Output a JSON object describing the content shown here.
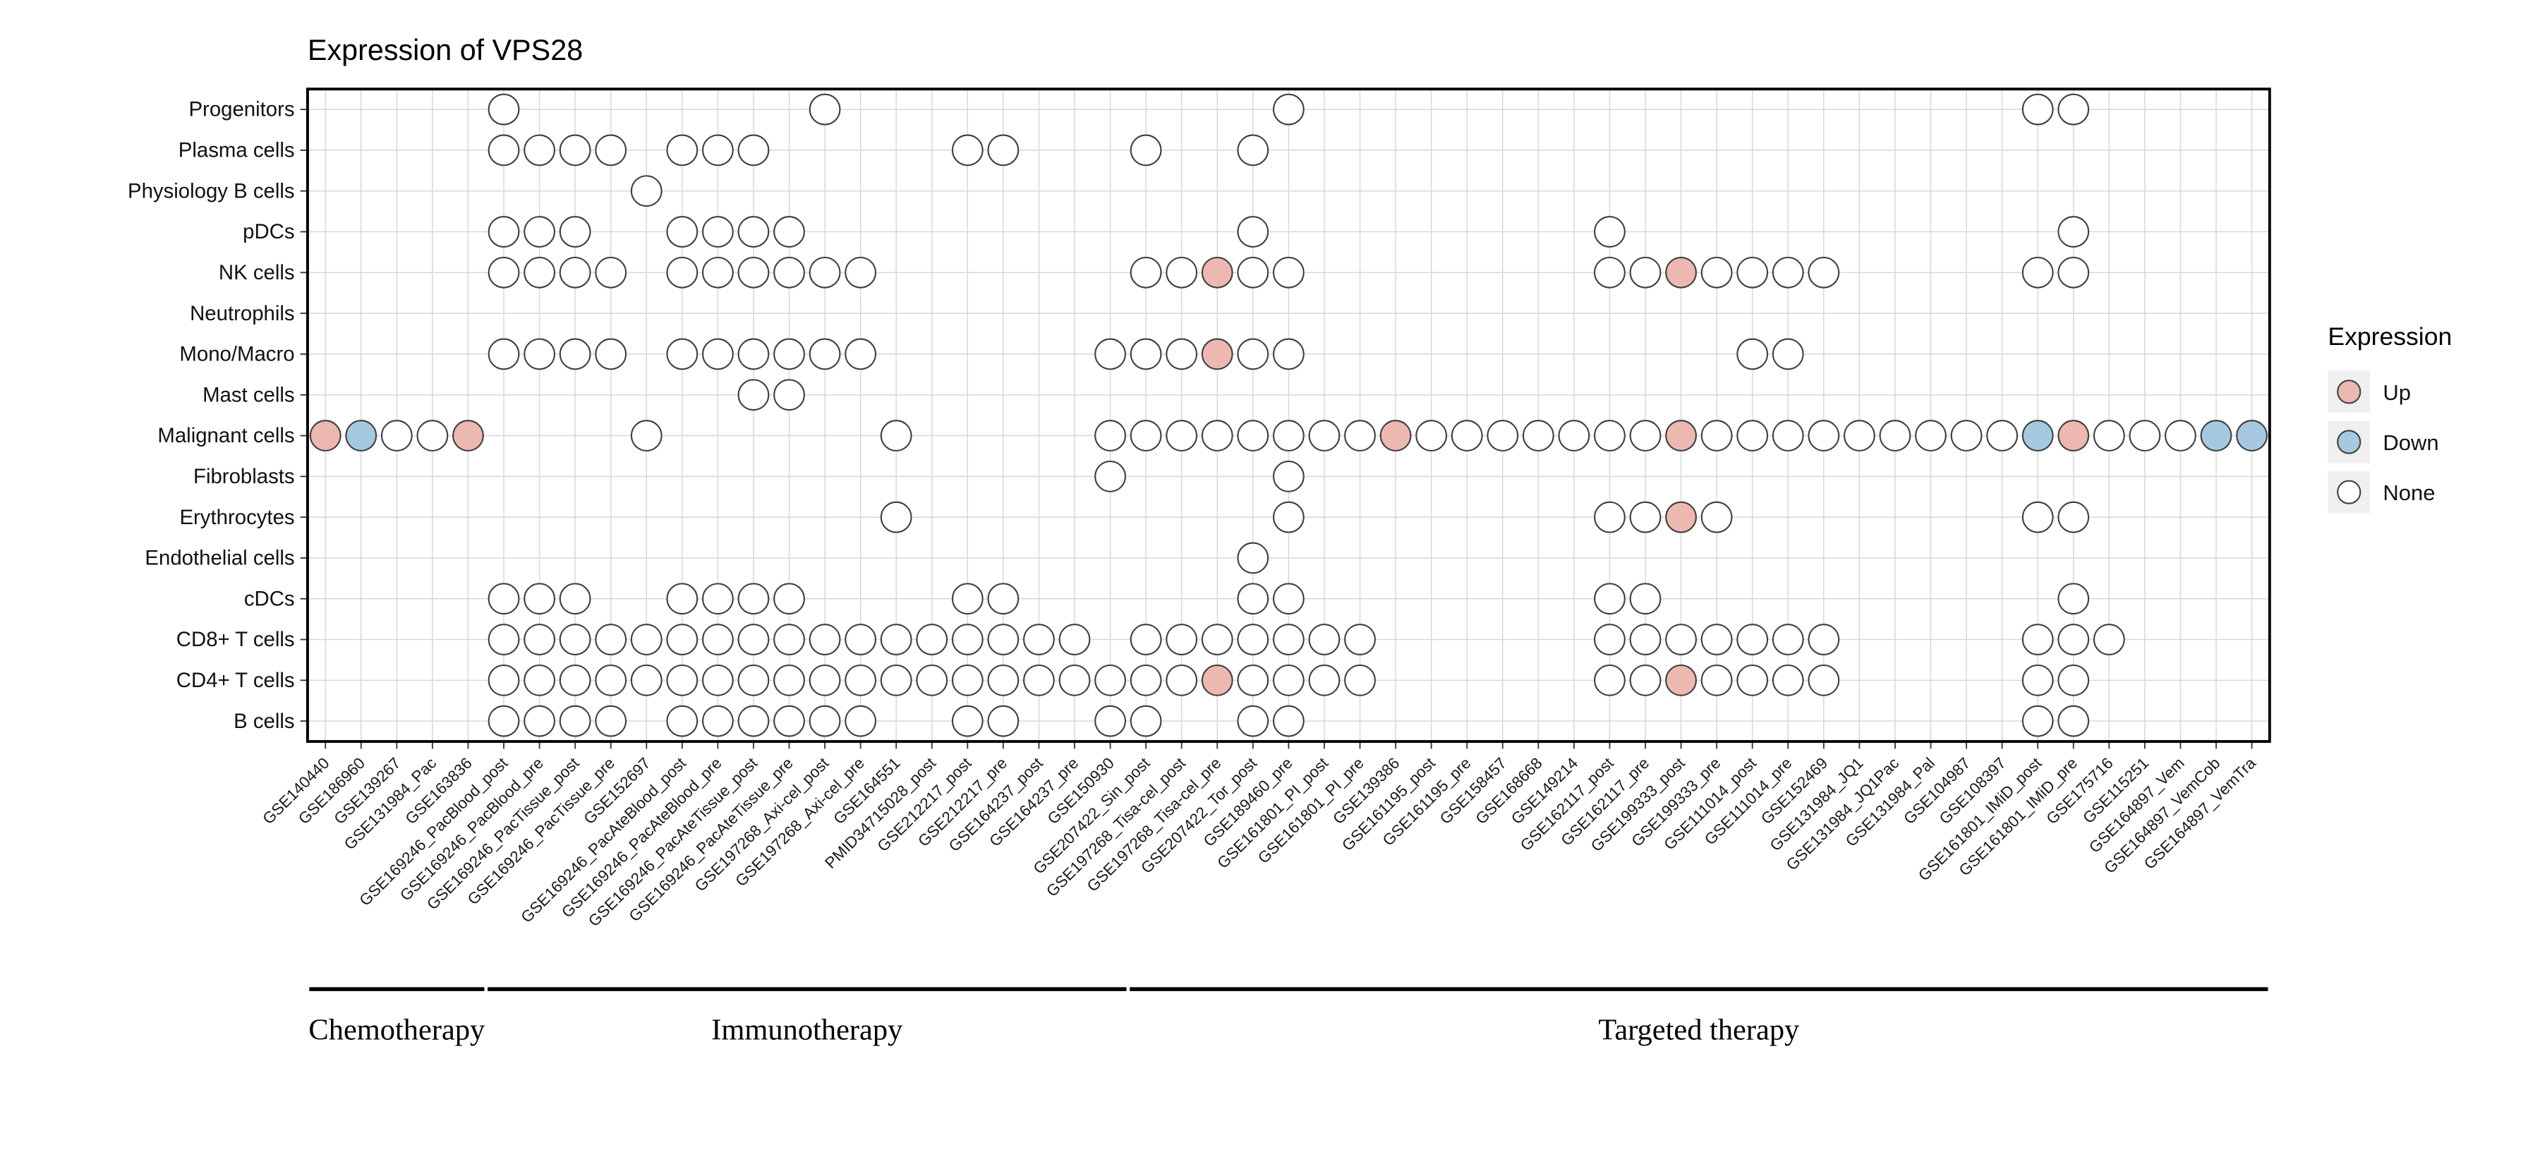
{
  "title": "Expression of VPS28",
  "legend": {
    "title": "Expression",
    "items": [
      {
        "label": "Up",
        "color": "#EDB8B0"
      },
      {
        "label": "Down",
        "color": "#A6C9E0"
      },
      {
        "label": "None",
        "color": "#FFFFFF"
      }
    ]
  },
  "chart_data": {
    "type": "heatmap",
    "title": "Expression of VPS28",
    "x_categories": [
      "GSE140440",
      "GSE186960",
      "GSE139267",
      "GSE131984_Pac",
      "GSE163836",
      "GSE169246_PacBlood_post",
      "GSE169246_PacBlood_pre",
      "GSE169246_PacTissue_post",
      "GSE169246_PacTissue_pre",
      "GSE152697",
      "GSE169246_PacAteBlood_post",
      "GSE169246_PacAteBlood_pre",
      "GSE169246_PacAteTissue_post",
      "GSE169246_PacAteTissue_pre",
      "GSE197268_Axi-cel_post",
      "GSE197268_Axi-cel_pre",
      "GSE164551",
      "PMID34715028_post",
      "GSE212217_post",
      "GSE212217_pre",
      "GSE164237_post",
      "GSE164237_pre",
      "GSE150930",
      "GSE207422_Sin_post",
      "GSE197268_Tisa-cel_post",
      "GSE197268_Tisa-cel_pre",
      "GSE207422_Tor_post",
      "GSE189460_pre",
      "GSE161801_PI_post",
      "GSE161801_PI_pre",
      "GSE139386",
      "GSE161195_post",
      "GSE161195_pre",
      "GSE158457",
      "GSE168668",
      "GSE149214",
      "GSE162117_post",
      "GSE162117_pre",
      "GSE199333_post",
      "GSE199333_pre",
      "GSE111014_post",
      "GSE111014_pre",
      "GSE152469",
      "GSE131984_JQ1",
      "GSE131984_JQ1Pac",
      "GSE131984_Pal",
      "GSE104987",
      "GSE108397",
      "GSE161801_IMiD_post",
      "GSE161801_IMiD_pre",
      "GSE175716",
      "GSE115251",
      "GSE164897_Vem",
      "GSE164897_VemCob",
      "GSE164897_VemTra"
    ],
    "y_categories": [
      "Progenitors",
      "Plasma cells",
      "Physiology B cells",
      "pDCs",
      "NK cells",
      "Neutrophils",
      "Mono/Macro",
      "Mast cells",
      "Malignant cells",
      "Fibroblasts",
      "Erythrocytes",
      "Endothelial cells",
      "cDCs",
      "CD8+ T cells",
      "CD4+ T cells",
      "B cells"
    ],
    "cell_codes": {
      "U": "Up",
      "D": "Down",
      "N": "None",
      ".": "no data"
    },
    "matrix": [
      ".....N........N............N....................NN.....",
      ".....NNNN.NNN.....NN...N..N............................",
      ".........N.............................................",
      ".....NNN..NNNN............N.........N............N.....",
      ".....NNNN.NNNNNN.......NNUNN........NNUNNNN.....NN.....",
      ".......................................................",
      ".....NNNN.NNNNNN......NNNUNN............NN.............",
      "............NN.........................................",
      "UDNNU....N......N.....NNNNNNNNUNNNNNNNUNNNNNNNNNDUNNNDD",
      "......................N....N...........................",
      "................N..........N........NNUN........NN.....",
      "..........................N............................",
      ".....NNN..NNNN....NN......NN........NN...........N.....",
      ".....NNNNNNNNNNNNNNNNN.NNNNNNN......NNNNNNN.....NNN....",
      ".....NNNNNNNNNNNNNNNNNNNNUNNNN......NNUNNNN.....NN.....",
      ".....NNNN.NNNNNN..NN..NN..NN....................NN....."
    ],
    "colors": {
      "Up": "#EDB8B0",
      "Down": "#A6C9E0",
      "None": "#FFFFFF"
    },
    "groups": [
      {
        "label": "Chemotherapy",
        "start": 1,
        "end": 5
      },
      {
        "label": "Immunotherapy",
        "start": 6,
        "end": 23
      },
      {
        "label": "Targeted therapy",
        "start": 24,
        "end": 55
      }
    ],
    "legend_position": "right",
    "grid": true
  }
}
